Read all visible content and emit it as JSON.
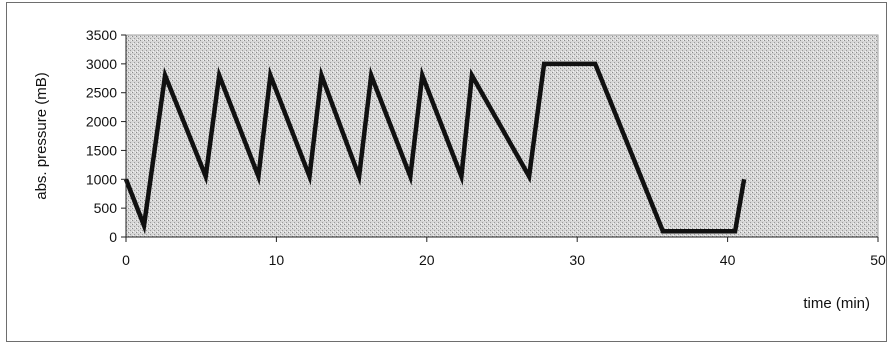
{
  "chart_data": {
    "type": "line",
    "title": "",
    "xlabel": "time (min)",
    "ylabel": "abs. pressure (mB)",
    "xlim": [
      0,
      50
    ],
    "ylim": [
      0,
      3500
    ],
    "x_ticks": [
      0,
      10,
      20,
      30,
      40,
      50
    ],
    "y_ticks": [
      0,
      500,
      1000,
      1500,
      2000,
      2500,
      3000,
      3500
    ],
    "grid": false,
    "background": "stippled grey",
    "line_color": "#111111",
    "series": [
      {
        "x": [
          0,
          1.2,
          2.6,
          5.3,
          6.2,
          8.8,
          9.6,
          12.2,
          13.0,
          15.5,
          16.3,
          18.9,
          19.7,
          22.3,
          23.0,
          26.8,
          27.8,
          31.2,
          35.7,
          40.5,
          41.1
        ],
        "y": [
          1000,
          200,
          2800,
          1050,
          2800,
          1050,
          2800,
          1050,
          2800,
          1050,
          2800,
          1050,
          2800,
          1050,
          2800,
          1050,
          3000,
          3000,
          100,
          100,
          1000
        ]
      }
    ]
  }
}
